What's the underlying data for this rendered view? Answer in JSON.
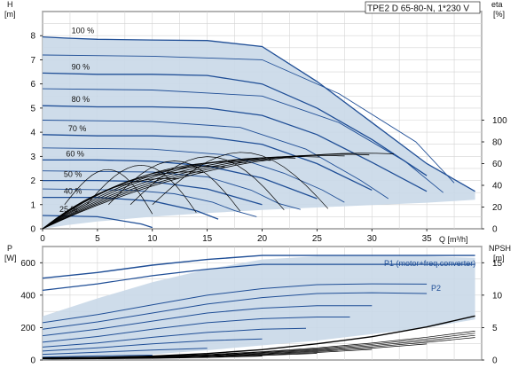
{
  "chart_data": [
    {
      "type": "line",
      "title": "TPE2 D 65-80-N, 1*230 V",
      "xlabel": "Q [m³/h]",
      "ylabel_left": "H\n[m]",
      "ylabel_right": "eta\n[%]",
      "x_ticks": [
        0,
        5,
        10,
        15,
        20,
        25,
        30,
        35
      ],
      "y_left_ticks": [
        0,
        1,
        2,
        3,
        4,
        5,
        6,
        7,
        8
      ],
      "y_right_ticks": [
        0,
        20,
        40,
        60,
        80,
        100
      ],
      "xlim": [
        0,
        40
      ],
      "ylim_left": [
        0,
        9
      ],
      "ylim_right": [
        0,
        200
      ],
      "grid": true,
      "speed_curves": [
        {
          "label": "100 %",
          "x": [
            0,
            2,
            5,
            10,
            15,
            20,
            25,
            30,
            35,
            39.4
          ],
          "y": [
            7.95,
            7.9,
            7.85,
            7.82,
            7.8,
            7.55,
            6.1,
            4.4,
            2.7,
            1.55
          ]
        },
        {
          "label": "90 %",
          "x": [
            0,
            5,
            10,
            15,
            20,
            25,
            30,
            35
          ],
          "y": [
            6.45,
            6.4,
            6.4,
            6.35,
            6.0,
            5.0,
            3.7,
            2.2
          ]
        },
        {
          "label": "80 %",
          "x": [
            0,
            5,
            10,
            15,
            20,
            25,
            30,
            35
          ],
          "y": [
            5.1,
            5.05,
            5.05,
            5.0,
            4.7,
            3.9,
            2.75,
            1.55
          ]
        },
        {
          "label": "70 %",
          "x": [
            0,
            5,
            10,
            15,
            20,
            25,
            30
          ],
          "y": [
            3.9,
            3.85,
            3.85,
            3.8,
            3.5,
            2.7,
            1.6
          ]
        },
        {
          "label": "60 %",
          "x": [
            0,
            5,
            10,
            15,
            20,
            25
          ],
          "y": [
            2.85,
            2.85,
            2.8,
            2.6,
            2.1,
            1.25
          ]
        },
        {
          "label": "50 %",
          "x": [
            0,
            5,
            10,
            15,
            20
          ],
          "y": [
            2.0,
            2.0,
            1.95,
            1.65,
            1.0
          ]
        },
        {
          "label": "40 %",
          "x": [
            0,
            5,
            10,
            14,
            16
          ],
          "y": [
            1.3,
            1.3,
            1.15,
            0.75,
            0.4
          ]
        },
        {
          "label": "25 %",
          "x": [
            0,
            5,
            9,
            10
          ],
          "y": [
            0.55,
            0.5,
            0.2,
            0.05
          ]
        }
      ],
      "intermediate_curves": [
        {
          "x": [
            0,
            10,
            20,
            27,
            34,
            37.5
          ],
          "y": [
            7.2,
            7.15,
            7.0,
            5.6,
            3.6,
            1.9
          ]
        },
        {
          "x": [
            0,
            10,
            20,
            27,
            33,
            36.5
          ],
          "y": [
            5.8,
            5.75,
            5.5,
            4.4,
            2.8,
            1.5
          ]
        },
        {
          "x": [
            0,
            10,
            18,
            24,
            29,
            31.5
          ],
          "y": [
            4.5,
            4.45,
            4.2,
            3.3,
            2.0,
            1.25
          ]
        },
        {
          "x": [
            0,
            10,
            17,
            22,
            25.5,
            27.5
          ],
          "y": [
            3.35,
            3.3,
            3.05,
            2.3,
            1.6,
            1.1
          ]
        },
        {
          "x": [
            0,
            10,
            15,
            19,
            21.5,
            23.5
          ],
          "y": [
            2.4,
            2.35,
            2.15,
            1.6,
            1.05,
            0.8
          ]
        },
        {
          "x": [
            0,
            8,
            12,
            15.5,
            17.5,
            19.5
          ],
          "y": [
            1.65,
            1.6,
            1.45,
            1.1,
            0.75,
            0.5
          ]
        }
      ],
      "efficiency_x": [
        0.5,
        2,
        4,
        6,
        8,
        10,
        12,
        14,
        16,
        18,
        20,
        22,
        24,
        26,
        28
      ],
      "efficiency_peaks_eta": [
        46,
        52,
        57,
        61,
        63,
        65,
        66,
        67,
        68,
        69
      ],
      "efficiency_peak_scale": [
        0.3,
        0.38,
        0.45,
        0.52,
        0.6,
        0.68,
        0.76,
        0.84,
        0.92,
        1.0
      ],
      "region_polygon_H": {
        "x": [
          0,
          2.2,
          5,
          10,
          15,
          20,
          25,
          30,
          35,
          39.4,
          39.4,
          35,
          30,
          25,
          20,
          15,
          10,
          5,
          2.2,
          0
        ],
        "y": [
          7.95,
          7.9,
          7.85,
          7.82,
          7.8,
          7.55,
          6.1,
          4.4,
          2.7,
          1.55,
          1.2,
          1.08,
          0.98,
          0.88,
          0.78,
          0.65,
          0.5,
          0.3,
          0.15,
          0.0
        ]
      }
    },
    {
      "type": "line",
      "xlabel": "",
      "ylabel_left": "P\n[W]",
      "ylabel_right": "NPSH\n[m]",
      "y_left_ticks": [
        0,
        200,
        400,
        600
      ],
      "y_right_ticks": [
        0,
        5,
        10,
        15
      ],
      "ylim_left": [
        0,
        700
      ],
      "ylim_right": [
        0,
        17.5
      ],
      "grid": true,
      "legend_entries": [
        "P1 (motor+freq.converter)",
        "P2"
      ],
      "p1_curve": {
        "x": [
          0,
          5,
          10,
          15,
          20,
          25,
          30,
          35,
          39.4
        ],
        "y": [
          505,
          540,
          585,
          620,
          645,
          645,
          645,
          645,
          645
        ]
      },
      "p2_curve": {
        "x": [
          0,
          5,
          10,
          15,
          20,
          25,
          30,
          35,
          39.4
        ],
        "y": [
          430,
          470,
          520,
          560,
          590,
          590,
          590,
          590,
          590
        ]
      },
      "power_curves": [
        {
          "x": [
            0,
            5,
            10,
            15,
            20,
            25,
            30,
            35
          ],
          "y": [
            230,
            280,
            340,
            400,
            440,
            465,
            470,
            468
          ]
        },
        {
          "x": [
            0,
            5,
            10,
            15,
            20,
            25,
            30,
            35
          ],
          "y": [
            190,
            235,
            290,
            345,
            385,
            410,
            415,
            410
          ]
        },
        {
          "x": [
            0,
            5,
            10,
            15,
            20,
            25,
            30
          ],
          "y": [
            150,
            190,
            240,
            290,
            320,
            335,
            335
          ]
        },
        {
          "x": [
            0,
            5,
            10,
            15,
            20,
            25,
            28
          ],
          "y": [
            110,
            145,
            190,
            230,
            255,
            265,
            265
          ]
        },
        {
          "x": [
            0,
            5,
            10,
            15,
            20,
            24
          ],
          "y": [
            80,
            105,
            140,
            170,
            190,
            195
          ]
        },
        {
          "x": [
            0,
            5,
            10,
            15,
            20
          ],
          "y": [
            55,
            75,
            100,
            120,
            130
          ]
        },
        {
          "x": [
            0,
            5,
            10,
            15
          ],
          "y": [
            35,
            48,
            62,
            72
          ]
        },
        {
          "x": [
            0,
            5,
            10
          ],
          "y": [
            18,
            25,
            30
          ]
        }
      ],
      "npsh_curve": {
        "x": [
          0,
          5,
          10,
          15,
          20,
          25,
          30,
          35,
          39.4
        ],
        "y": [
          0.3,
          0.4,
          0.6,
          1.0,
          1.6,
          2.5,
          3.6,
          5.1,
          6.8
        ]
      },
      "region_polygon_P": {
        "x": [
          0,
          5,
          10,
          15,
          20,
          25,
          30,
          35,
          39.4,
          39.4,
          35,
          30,
          25,
          20,
          15,
          10,
          5,
          0
        ],
        "y": [
          270,
          380,
          480,
          560,
          620,
          640,
          640,
          640,
          630,
          250,
          200,
          160,
          120,
          90,
          60,
          35,
          15,
          0
        ]
      }
    }
  ]
}
